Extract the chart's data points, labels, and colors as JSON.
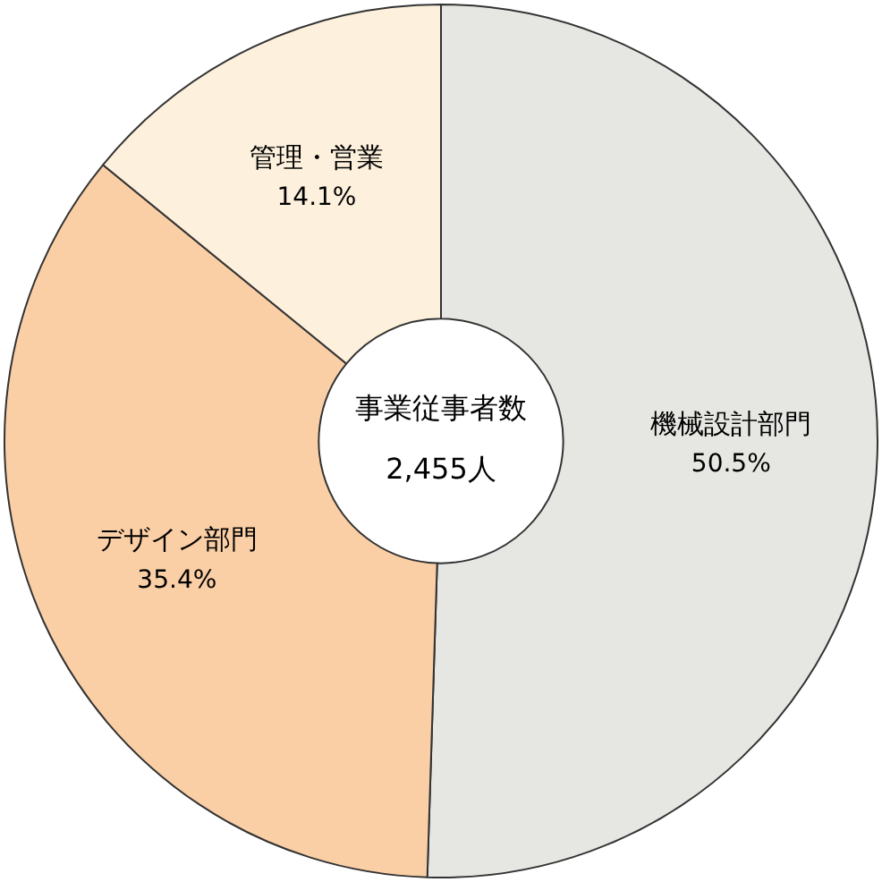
{
  "chart_data": {
    "type": "donut",
    "categories": [
      "機械設計部門",
      "デザイン部門",
      "管理・営業"
    ],
    "values": [
      50.5,
      35.4,
      14.1
    ],
    "colors": [
      "#e6e6e2",
      "#fbcfa6",
      "#fdf0dc"
    ],
    "value_labels": [
      "50.5%",
      "35.4%",
      "14.1%"
    ],
    "annotations": [
      "事業従事者数",
      "2,455人"
    ],
    "legend": false
  }
}
